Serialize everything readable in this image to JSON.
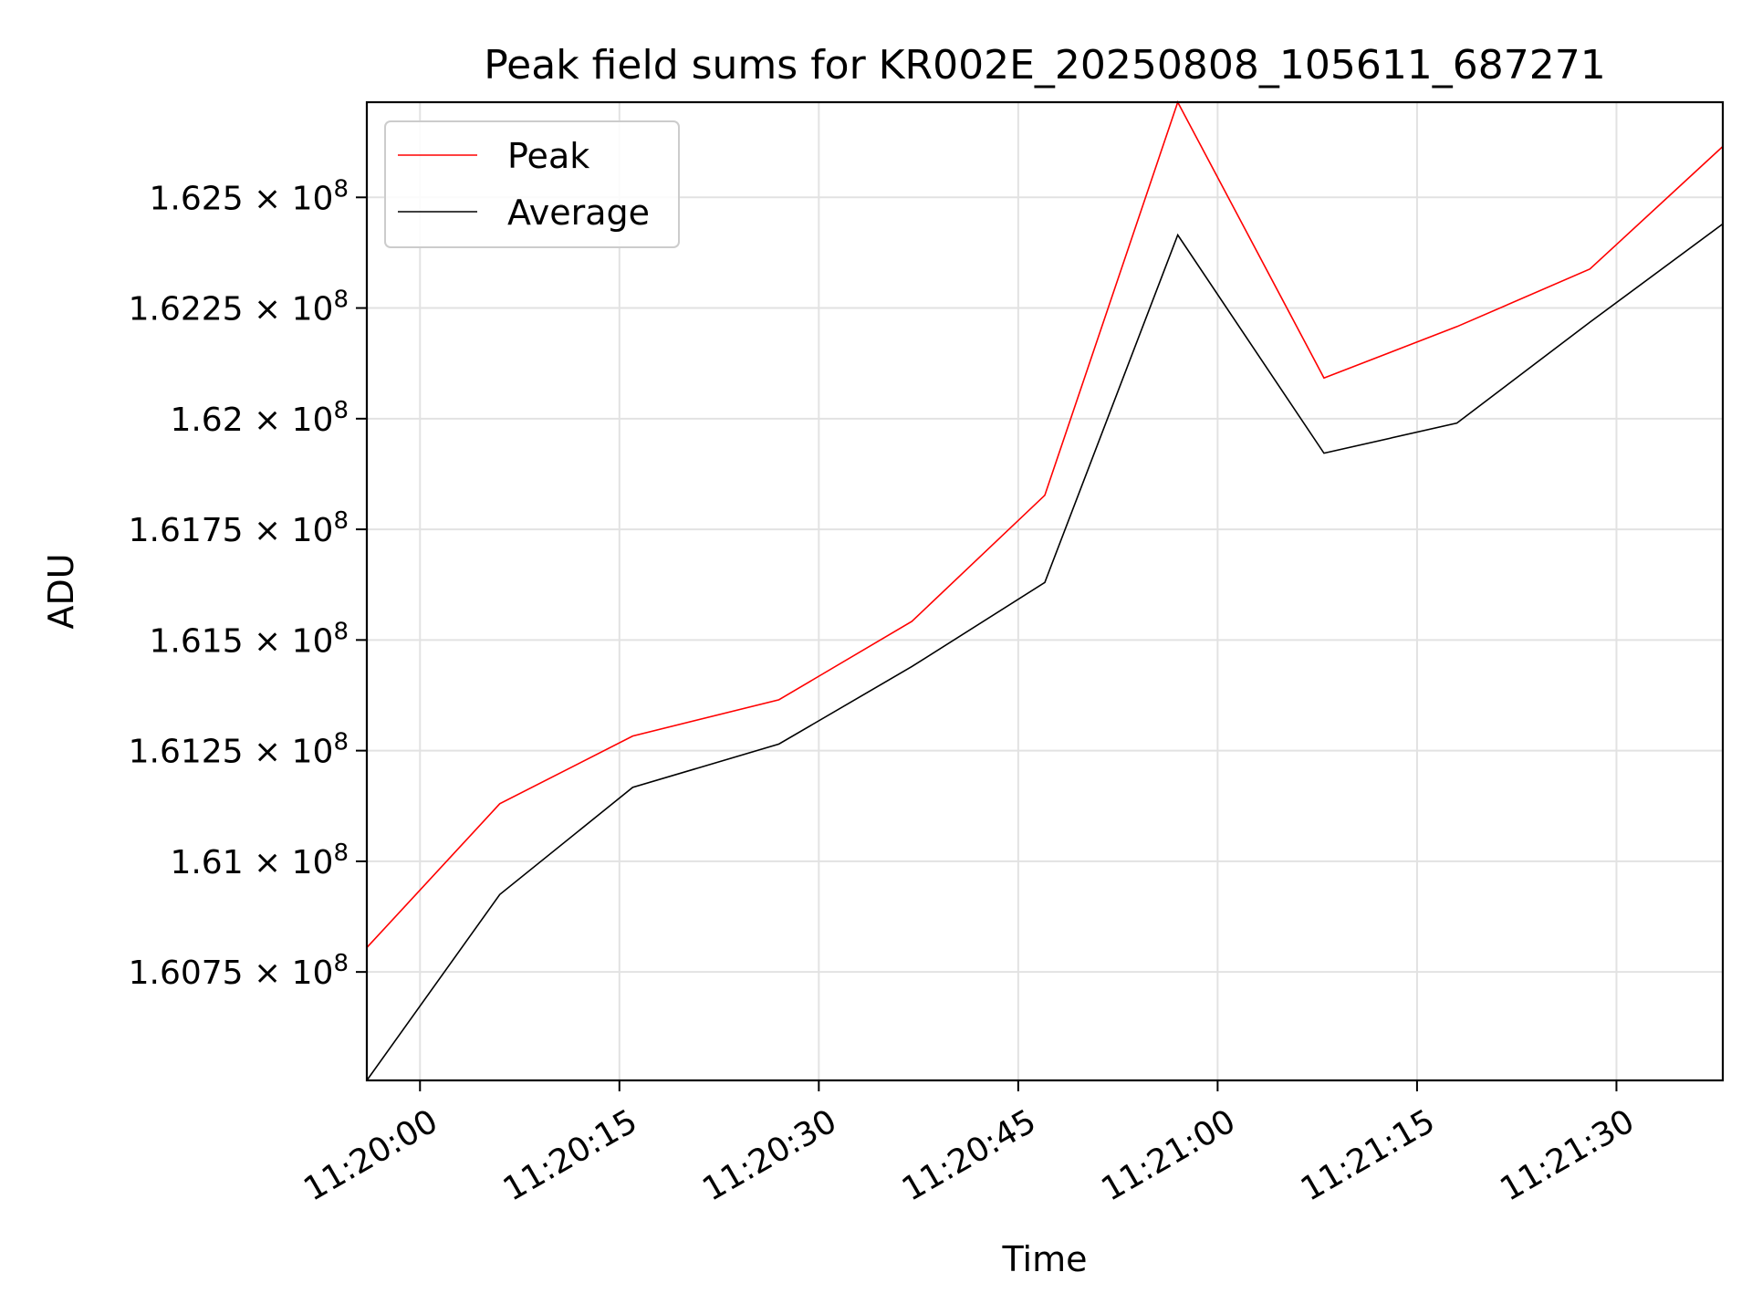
{
  "chart_data": {
    "type": "line",
    "title": "Peak field sums for KR002E_20250808_105611_687271",
    "xlabel": "Time",
    "ylabel": "ADU",
    "x": [
      "11:19:56",
      "11:20:06",
      "11:20:16",
      "11:20:27",
      "11:20:37",
      "11:20:47",
      "11:20:57",
      "11:21:08",
      "11:21:18",
      "11:21:28",
      "11:21:38"
    ],
    "xlim": [
      "11:19:56",
      "11:21:38"
    ],
    "xticks": [
      "11:20:00",
      "11:20:15",
      "11:20:30",
      "11:20:45",
      "11:21:00",
      "11:21:15",
      "11:21:30"
    ],
    "ylim": [
      160505000,
      162715000
    ],
    "yticks": [
      {
        "value": 160750000,
        "mantissa": "1.6075",
        "exponent": "8"
      },
      {
        "value": 161000000,
        "mantissa": "1.61",
        "exponent": "8"
      },
      {
        "value": 161250000,
        "mantissa": "1.6125",
        "exponent": "8"
      },
      {
        "value": 161500000,
        "mantissa": "1.615",
        "exponent": "8"
      },
      {
        "value": 161750000,
        "mantissa": "1.6175",
        "exponent": "8"
      },
      {
        "value": 162000000,
        "mantissa": "1.62",
        "exponent": "8"
      },
      {
        "value": 162250000,
        "mantissa": "1.6225",
        "exponent": "8"
      },
      {
        "value": 162500000,
        "mantissa": "1.625",
        "exponent": "8"
      }
    ],
    "grid": true,
    "legend_position": "upper-left",
    "series": [
      {
        "name": "Peak",
        "color": "#ff0000",
        "values": [
          160805000,
          161130000,
          161283000,
          161365000,
          161542000,
          161827000,
          162715000,
          162092000,
          162208000,
          162338000,
          162615000
        ]
      },
      {
        "name": "Average",
        "color": "#000000",
        "values": [
          160505000,
          160925000,
          161167000,
          161265000,
          161440000,
          161630000,
          162415000,
          161922000,
          161990000,
          162218000,
          162440000
        ]
      }
    ]
  }
}
